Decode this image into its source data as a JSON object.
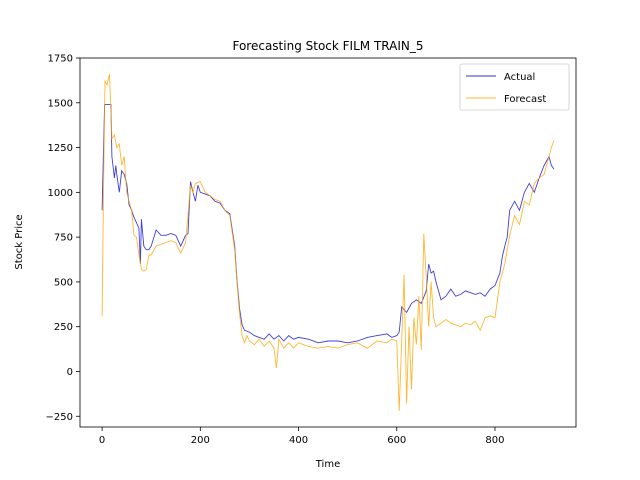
{
  "chart_data": {
    "type": "line",
    "title": "Forecasting Stock FILM TRAIN_5",
    "xlabel": "Time",
    "ylabel": "Stock Price",
    "xlim": [
      -45,
      965
    ],
    "ylim": [
      -310,
      1750
    ],
    "xticks": [
      0,
      200,
      400,
      600,
      800
    ],
    "yticks": [
      -250,
      0,
      250,
      500,
      750,
      1000,
      1250,
      1500,
      1750
    ],
    "grid": false,
    "legend_position": "top-right",
    "series": [
      {
        "name": "Actual",
        "color": "#0000cc",
        "x": [
          0,
          5,
          10,
          15,
          18,
          20,
          25,
          28,
          30,
          35,
          40,
          45,
          50,
          55,
          60,
          65,
          70,
          75,
          78,
          80,
          85,
          90,
          95,
          100,
          110,
          120,
          130,
          140,
          150,
          160,
          170,
          175,
          180,
          185,
          190,
          195,
          200,
          210,
          220,
          230,
          240,
          250,
          260,
          270,
          275,
          280,
          285,
          290,
          300,
          310,
          320,
          330,
          340,
          350,
          360,
          370,
          380,
          390,
          400,
          420,
          440,
          460,
          480,
          500,
          520,
          540,
          560,
          580,
          590,
          600,
          605,
          610,
          620,
          630,
          640,
          650,
          660,
          665,
          670,
          675,
          680,
          690,
          700,
          710,
          720,
          730,
          740,
          750,
          760,
          770,
          780,
          790,
          800,
          810,
          815,
          820,
          825,
          830,
          840,
          850,
          860,
          870,
          880,
          890,
          900,
          910,
          915,
          920
        ],
        "values": [
          900,
          1490,
          1490,
          1490,
          1490,
          1200,
          1080,
          1150,
          1100,
          1000,
          1120,
          1100,
          1050,
          930,
          900,
          860,
          830,
          800,
          600,
          850,
          700,
          680,
          680,
          700,
          790,
          760,
          760,
          770,
          760,
          700,
          760,
          770,
          1060,
          1000,
          950,
          1040,
          1000,
          990,
          980,
          950,
          940,
          900,
          880,
          700,
          500,
          350,
          260,
          230,
          220,
          200,
          190,
          180,
          210,
          180,
          200,
          170,
          200,
          180,
          190,
          180,
          160,
          170,
          170,
          160,
          170,
          190,
          200,
          210,
          190,
          200,
          220,
          360,
          330,
          380,
          400,
          380,
          450,
          600,
          550,
          560,
          500,
          400,
          420,
          460,
          420,
          430,
          450,
          440,
          430,
          440,
          420,
          460,
          480,
          550,
          640,
          700,
          750,
          900,
          950,
          900,
          1000,
          1050,
          1000,
          1080,
          1150,
          1200,
          1150,
          1130
        ]
      },
      {
        "name": "Forecast",
        "color": "#ffa500",
        "x": [
          0,
          3,
          6,
          10,
          15,
          20,
          25,
          30,
          35,
          40,
          45,
          50,
          55,
          60,
          65,
          70,
          75,
          80,
          85,
          90,
          95,
          100,
          110,
          120,
          130,
          140,
          150,
          160,
          170,
          180,
          185,
          190,
          200,
          210,
          220,
          230,
          240,
          250,
          260,
          270,
          275,
          280,
          285,
          290,
          295,
          300,
          310,
          320,
          330,
          340,
          350,
          355,
          360,
          370,
          380,
          390,
          400,
          420,
          440,
          460,
          480,
          500,
          520,
          540,
          560,
          580,
          590,
          600,
          605,
          610,
          615,
          620,
          625,
          630,
          635,
          640,
          645,
          650,
          655,
          660,
          665,
          670,
          675,
          680,
          690,
          700,
          710,
          720,
          730,
          740,
          750,
          760,
          770,
          780,
          790,
          800,
          810,
          820,
          830,
          840,
          850,
          860,
          870,
          880,
          890,
          900,
          910,
          915,
          920
        ],
        "values": [
          310,
          1050,
          1620,
          1600,
          1660,
          1300,
          1320,
          1250,
          1270,
          1150,
          1200,
          1000,
          950,
          900,
          760,
          750,
          650,
          570,
          560,
          570,
          650,
          650,
          700,
          710,
          720,
          730,
          720,
          660,
          720,
          1040,
          1000,
          1050,
          1060,
          1000,
          980,
          960,
          950,
          900,
          870,
          680,
          490,
          320,
          200,
          160,
          200,
          170,
          150,
          180,
          140,
          170,
          130,
          20,
          180,
          130,
          160,
          130,
          160,
          140,
          130,
          140,
          130,
          150,
          160,
          130,
          170,
          160,
          180,
          170,
          -220,
          170,
          540,
          -180,
          250,
          -100,
          300,
          150,
          420,
          120,
          770,
          530,
          250,
          500,
          300,
          250,
          270,
          290,
          270,
          260,
          250,
          270,
          260,
          280,
          230,
          300,
          310,
          300,
          500,
          600,
          760,
          870,
          820,
          950,
          930,
          1050,
          1080,
          1100,
          1200,
          1250,
          1290
        ]
      }
    ]
  }
}
